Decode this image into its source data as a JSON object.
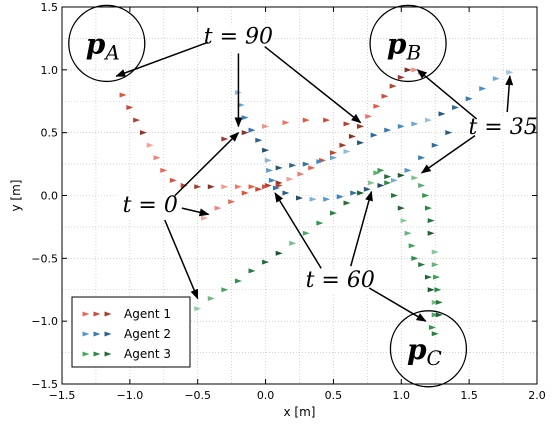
{
  "chart_data": {
    "type": "scatter",
    "xlabel": "x [m]",
    "ylabel": "y [m]",
    "xlim": [
      -1.5,
      2.0
    ],
    "ylim": [
      -1.5,
      1.5
    ],
    "xticks": [
      "−1.5",
      "−1.0",
      "−0.5",
      "0.0",
      "0.5",
      "1.0",
      "1.5",
      "2.0"
    ],
    "yticks": [
      "−1.5",
      "−1.0",
      "−0.5",
      "0.0",
      "0.5",
      "1.0",
      "1.5"
    ],
    "grid": true,
    "legend_position": "lower-left",
    "series": [
      {
        "name": "Agent 1",
        "color": "#e8523d",
        "points": [
          [
            -0.45,
            -0.18
          ],
          [
            -0.35,
            -0.1
          ],
          [
            -0.25,
            -0.05
          ],
          [
            -0.15,
            0.02
          ],
          [
            -0.05,
            0.05
          ],
          [
            0.02,
            0.08
          ],
          [
            0.1,
            0.1
          ],
          [
            0.18,
            0.13
          ],
          [
            0.26,
            0.17
          ],
          [
            0.34,
            0.22
          ],
          [
            0.42,
            0.28
          ],
          [
            0.5,
            0.34
          ],
          [
            0.57,
            0.4
          ],
          [
            0.64,
            0.47
          ],
          [
            0.7,
            0.55
          ],
          [
            0.76,
            0.63
          ],
          [
            0.82,
            0.71
          ],
          [
            0.88,
            0.79
          ],
          [
            0.94,
            0.87
          ],
          [
            1.0,
            0.94
          ],
          [
            1.05,
            1.0
          ],
          [
            1.1,
            1.0
          ],
          [
            1.15,
            0.98
          ],
          [
            -1.05,
            0.8
          ],
          [
            -1.0,
            0.7
          ],
          [
            -0.95,
            0.6
          ],
          [
            -0.9,
            0.5
          ],
          [
            -0.85,
            0.4
          ],
          [
            -0.8,
            0.3
          ],
          [
            -0.75,
            0.2
          ],
          [
            -0.68,
            0.12
          ],
          [
            -0.6,
            0.08
          ],
          [
            -0.5,
            0.07
          ],
          [
            -0.4,
            0.07
          ],
          [
            -0.3,
            0.07
          ],
          [
            -0.2,
            0.07
          ],
          [
            -0.1,
            0.07
          ],
          [
            0.0,
            0.07
          ],
          [
            0.1,
            0.08
          ],
          [
            -0.3,
            0.45
          ],
          [
            -0.15,
            0.5
          ],
          [
            0.0,
            0.55
          ],
          [
            0.15,
            0.58
          ],
          [
            0.3,
            0.6
          ],
          [
            0.45,
            0.6
          ],
          [
            0.6,
            0.57
          ],
          [
            0.7,
            0.55
          ]
        ]
      },
      {
        "name": "Agent 2",
        "color": "#3a87c0",
        "points": [
          [
            1.8,
            0.98
          ],
          [
            1.7,
            0.93
          ],
          [
            1.6,
            0.85
          ],
          [
            1.5,
            0.77
          ],
          [
            1.4,
            0.7
          ],
          [
            1.3,
            0.65
          ],
          [
            1.2,
            0.6
          ],
          [
            1.1,
            0.57
          ],
          [
            1.0,
            0.55
          ],
          [
            0.9,
            0.52
          ],
          [
            0.8,
            0.48
          ],
          [
            0.7,
            0.42
          ],
          [
            0.6,
            0.35
          ],
          [
            0.5,
            0.3
          ],
          [
            0.4,
            0.27
          ],
          [
            0.3,
            0.25
          ],
          [
            0.2,
            0.24
          ],
          [
            0.1,
            0.22
          ],
          [
            -0.2,
            0.82
          ],
          [
            -0.18,
            0.72
          ],
          [
            -0.15,
            0.62
          ],
          [
            -0.1,
            0.52
          ],
          [
            -0.05,
            0.44
          ],
          [
            0.0,
            0.36
          ],
          [
            0.02,
            0.28
          ],
          [
            0.03,
            0.2
          ],
          [
            0.05,
            0.12
          ],
          [
            0.08,
            0.06
          ],
          [
            0.15,
            0.02
          ],
          [
            0.25,
            -0.02
          ],
          [
            0.35,
            -0.03
          ],
          [
            0.45,
            -0.03
          ],
          [
            0.55,
            -0.01
          ],
          [
            0.65,
            0.02
          ],
          [
            0.75,
            0.05
          ],
          [
            0.85,
            0.08
          ],
          [
            0.95,
            0.12
          ],
          [
            1.05,
            0.2
          ],
          [
            1.15,
            0.3
          ],
          [
            1.25,
            0.4
          ],
          [
            1.35,
            0.5
          ]
        ]
      },
      {
        "name": "Agent 3",
        "color": "#2e9a4a",
        "points": [
          [
            -0.5,
            -0.9
          ],
          [
            -0.4,
            -0.82
          ],
          [
            -0.3,
            -0.75
          ],
          [
            -0.2,
            -0.68
          ],
          [
            -0.1,
            -0.6
          ],
          [
            0.0,
            -0.53
          ],
          [
            0.1,
            -0.46
          ],
          [
            0.2,
            -0.38
          ],
          [
            0.3,
            -0.3
          ],
          [
            0.4,
            -0.22
          ],
          [
            0.5,
            -0.14
          ],
          [
            0.6,
            -0.06
          ],
          [
            0.7,
            0.02
          ],
          [
            0.78,
            0.1
          ],
          [
            0.82,
            0.18
          ],
          [
            0.85,
            0.2
          ],
          [
            0.9,
            0.1
          ],
          [
            0.95,
            0.0
          ],
          [
            1.0,
            -0.1
          ],
          [
            1.02,
            -0.2
          ],
          [
            1.05,
            -0.3
          ],
          [
            1.08,
            -0.4
          ],
          [
            1.1,
            -0.5
          ],
          [
            1.15,
            -0.55
          ],
          [
            1.2,
            -0.65
          ],
          [
            1.22,
            -0.75
          ],
          [
            1.25,
            -0.85
          ],
          [
            1.25,
            -0.95
          ],
          [
            1.23,
            -1.05
          ],
          [
            1.25,
            -1.1
          ],
          [
            0.9,
            0.15
          ],
          [
            1.0,
            0.16
          ],
          [
            1.1,
            0.14
          ],
          [
            1.15,
            0.08
          ],
          [
            1.18,
            0.0
          ],
          [
            1.2,
            -0.1
          ],
          [
            1.22,
            -0.2
          ],
          [
            1.22,
            -0.3
          ],
          [
            1.25,
            -0.45
          ],
          [
            1.25,
            -0.55
          ],
          [
            1.26,
            -0.65
          ],
          [
            1.27,
            -0.75
          ],
          [
            1.28,
            -0.85
          ],
          [
            1.28,
            -0.95
          ]
        ]
      }
    ],
    "goal_points": [
      {
        "label_main": "p",
        "label_sub": "A",
        "x": -1.17,
        "y": 1.21
      },
      {
        "label_main": "p",
        "label_sub": "B",
        "x": 1.05,
        "y": 1.21
      },
      {
        "label_main": "p",
        "label_sub": "C",
        "x": 1.2,
        "y": -1.22
      }
    ],
    "annotations": [
      {
        "text": "t = 90",
        "x": -0.2,
        "y": 1.21,
        "arrows": [
          [
            -1.1,
            0.95
          ],
          [
            -0.2,
            0.55
          ],
          [
            0.7,
            0.58
          ]
        ]
      },
      {
        "text": "t = 35",
        "x": 1.75,
        "y": 0.49,
        "arrows": [
          [
            1.12,
            1.0
          ],
          [
            1.8,
            0.95
          ],
          [
            1.15,
            0.18
          ]
        ]
      },
      {
        "text": "t = 0",
        "x": -0.85,
        "y": -0.13,
        "arrows": [
          [
            -0.2,
            0.5
          ],
          [
            -0.42,
            -0.15
          ],
          [
            -0.5,
            -0.82
          ]
        ]
      },
      {
        "text": "t = 60",
        "x": 0.55,
        "y": -0.73,
        "arrows": [
          [
            0.07,
            0.02
          ],
          [
            0.78,
            0.03
          ],
          [
            1.18,
            -1.0
          ]
        ]
      }
    ]
  }
}
